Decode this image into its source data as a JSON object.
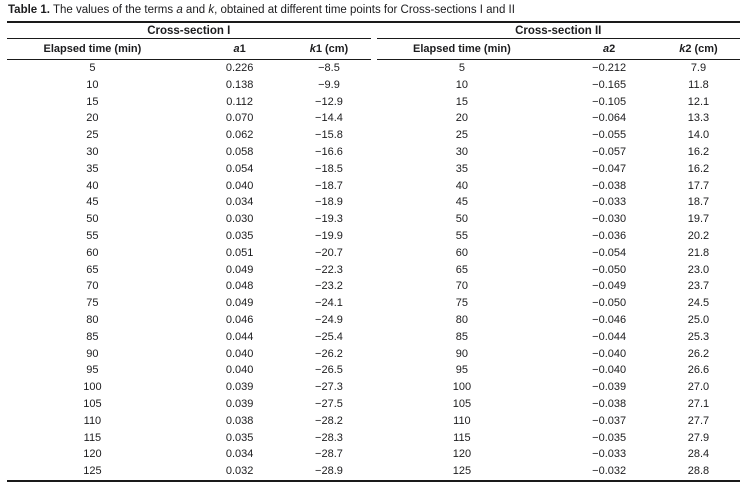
{
  "title": {
    "label": "Table 1.",
    "segments": [
      " The values of the terms ",
      "a",
      " and ",
      "k",
      ", obtained at different time points for Cross-sections I and II"
    ]
  },
  "table": {
    "sections": [
      {
        "group": "Cross-section I",
        "time_header": "Elapsed time (min)",
        "a_it": "a",
        "a_rest": "1",
        "k_it": "k",
        "k_rest": "1 (cm)",
        "rows": [
          [
            "5",
            "0.226",
            "−8.5"
          ],
          [
            "10",
            "0.138",
            "−9.9"
          ],
          [
            "15",
            "0.112",
            "−12.9"
          ],
          [
            "20",
            "0.070",
            "−14.4"
          ],
          [
            "25",
            "0.062",
            "−15.8"
          ],
          [
            "30",
            "0.058",
            "−16.6"
          ],
          [
            "35",
            "0.054",
            "−18.5"
          ],
          [
            "40",
            "0.040",
            "−18.7"
          ],
          [
            "45",
            "0.034",
            "−18.9"
          ],
          [
            "50",
            "0.030",
            "−19.3"
          ],
          [
            "55",
            "0.035",
            "−19.9"
          ],
          [
            "60",
            "0.051",
            "−20.7"
          ],
          [
            "65",
            "0.049",
            "−22.3"
          ],
          [
            "70",
            "0.048",
            "−23.2"
          ],
          [
            "75",
            "0.049",
            "−24.1"
          ],
          [
            "80",
            "0.046",
            "−24.9"
          ],
          [
            "85",
            "0.044",
            "−25.4"
          ],
          [
            "90",
            "0.040",
            "−26.2"
          ],
          [
            "95",
            "0.040",
            "−26.5"
          ],
          [
            "100",
            "0.039",
            "−27.3"
          ],
          [
            "105",
            "0.039",
            "−27.5"
          ],
          [
            "110",
            "0.038",
            "−28.2"
          ],
          [
            "115",
            "0.035",
            "−28.3"
          ],
          [
            "120",
            "0.034",
            "−28.7"
          ],
          [
            "125",
            "0.032",
            "−28.9"
          ]
        ]
      },
      {
        "group": "Cross-section II",
        "time_header": "Elapsed time (min)",
        "a_it": "a",
        "a_rest": "2",
        "k_it": "k",
        "k_rest": "2 (cm)",
        "rows": [
          [
            "5",
            "−0.212",
            "7.9"
          ],
          [
            "10",
            "−0.165",
            "11.8"
          ],
          [
            "15",
            "−0.105",
            "12.1"
          ],
          [
            "20",
            "−0.064",
            "13.3"
          ],
          [
            "25",
            "−0.055",
            "14.0"
          ],
          [
            "30",
            "−0.057",
            "16.2"
          ],
          [
            "35",
            "−0.047",
            "16.2"
          ],
          [
            "40",
            "−0.038",
            "17.7"
          ],
          [
            "45",
            "−0.033",
            "18.7"
          ],
          [
            "50",
            "−0.030",
            "19.7"
          ],
          [
            "55",
            "−0.036",
            "20.2"
          ],
          [
            "60",
            "−0.054",
            "21.8"
          ],
          [
            "65",
            "−0.050",
            "23.0"
          ],
          [
            "70",
            "−0.049",
            "23.7"
          ],
          [
            "75",
            "−0.050",
            "24.5"
          ],
          [
            "80",
            "−0.046",
            "25.0"
          ],
          [
            "85",
            "−0.044",
            "25.3"
          ],
          [
            "90",
            "−0.040",
            "26.2"
          ],
          [
            "95",
            "−0.040",
            "26.6"
          ],
          [
            "100",
            "−0.039",
            "27.0"
          ],
          [
            "105",
            "−0.038",
            "27.1"
          ],
          [
            "110",
            "−0.037",
            "27.7"
          ],
          [
            "115",
            "−0.035",
            "27.9"
          ],
          [
            "120",
            "−0.033",
            "28.4"
          ],
          [
            "125",
            "−0.032",
            "28.8"
          ]
        ]
      }
    ]
  },
  "colors": {
    "rule": "#1a1a1a",
    "text": "#1c1c1e",
    "background": "#ffffff"
  }
}
